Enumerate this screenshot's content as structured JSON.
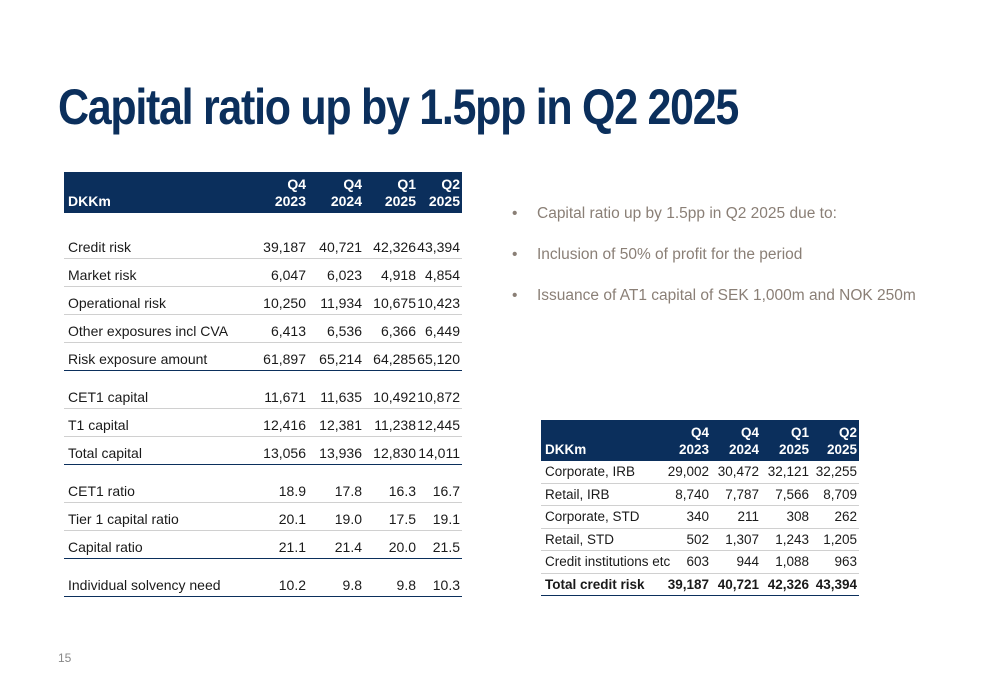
{
  "title": "Capital ratio up by 1.5pp in Q2 2025",
  "left_table": {
    "unit_label": "DKKm",
    "columns": [
      {
        "q": "Q4",
        "y": "2023"
      },
      {
        "q": "Q4",
        "y": "2024"
      },
      {
        "q": "Q1",
        "y": "2025"
      },
      {
        "q": "Q2",
        "y": "2025"
      }
    ],
    "groups": [
      [
        {
          "label": "Credit risk",
          "values": [
            "39,187",
            "40,721",
            "42,326",
            "43,394"
          ]
        },
        {
          "label": "Market risk",
          "values": [
            "6,047",
            "6,023",
            "4,918",
            "4,854"
          ]
        },
        {
          "label": "Operational risk",
          "values": [
            "10,250",
            "11,934",
            "10,675",
            "10,423"
          ]
        },
        {
          "label": "Other exposures incl CVA",
          "values": [
            "6,413",
            "6,536",
            "6,366",
            "6,449"
          ]
        },
        {
          "label": "Risk exposure amount",
          "values": [
            "61,897",
            "65,214",
            "64,285",
            "65,120"
          ]
        }
      ],
      [
        {
          "label": "CET1 capital",
          "values": [
            "11,671",
            "11,635",
            "10,492",
            "10,872"
          ]
        },
        {
          "label": "T1 capital",
          "values": [
            "12,416",
            "12,381",
            "11,238",
            "12,445"
          ]
        },
        {
          "label": "Total capital",
          "values": [
            "13,056",
            "13,936",
            "12,830",
            "14,011"
          ]
        }
      ],
      [
        {
          "label": "CET1 ratio",
          "values": [
            "18.9",
            "17.8",
            "16.3",
            "16.7"
          ]
        },
        {
          "label": "Tier 1 capital ratio",
          "values": [
            "20.1",
            "19.0",
            "17.5",
            "19.1"
          ]
        },
        {
          "label": "Capital ratio",
          "values": [
            "21.1",
            "21.4",
            "20.0",
            "21.5"
          ]
        }
      ],
      [
        {
          "label": "Individual solvency need",
          "values": [
            "10.2",
            "9.8",
            "9.8",
            "10.3"
          ]
        }
      ]
    ]
  },
  "bullets": [
    "Capital ratio up by 1.5pp in Q2 2025 due to:",
    "Inclusion of 50% of profit for the period",
    "Issuance of AT1 capital of SEK 1,000m and NOK 250m"
  ],
  "right_table": {
    "unit_label": "DKKm",
    "columns": [
      {
        "q": "Q4",
        "y": "2023"
      },
      {
        "q": "Q4",
        "y": "2024"
      },
      {
        "q": "Q1",
        "y": "2025"
      },
      {
        "q": "Q2",
        "y": "2025"
      }
    ],
    "rows": [
      {
        "label": "Corporate, IRB",
        "values": [
          "29,002",
          "30,472",
          "32,121",
          "32,255"
        ]
      },
      {
        "label": "Retail, IRB",
        "values": [
          "8,740",
          "7,787",
          "7,566",
          "8,709"
        ]
      },
      {
        "label": "Corporate, STD",
        "values": [
          "340",
          "211",
          "308",
          "262"
        ]
      },
      {
        "label": "Retail, STD",
        "values": [
          "502",
          "1,307",
          "1,243",
          "1,205"
        ]
      },
      {
        "label": "Credit institutions etc",
        "values": [
          "603",
          "944",
          "1,088",
          "963"
        ]
      },
      {
        "label": "Total credit risk",
        "values": [
          "39,187",
          "40,721",
          "42,326",
          "43,394"
        ]
      }
    ]
  },
  "page_number": "15",
  "colors": {
    "navy": "#0b2f5c",
    "bullet_text": "#8a7f76"
  }
}
